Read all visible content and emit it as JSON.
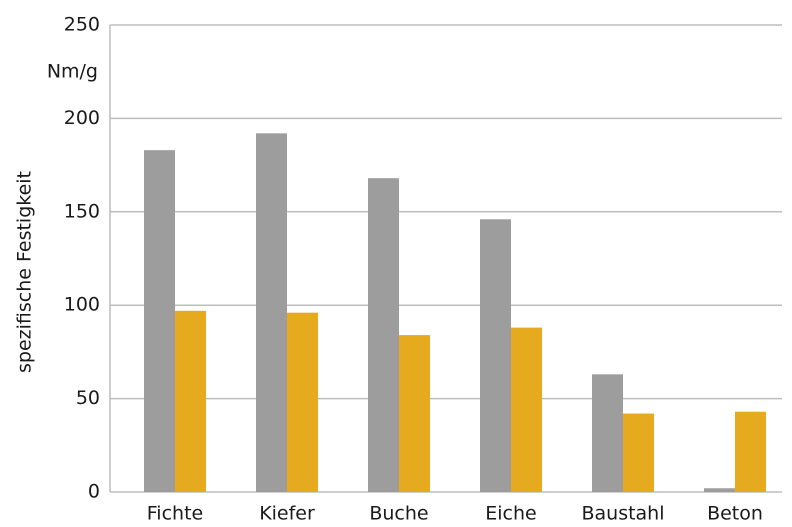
{
  "chart_data": {
    "type": "bar",
    "y_label": "spezifische Festigkeit",
    "unit": "Nm/g",
    "categories": [
      "Fichte",
      "Kiefer",
      "Buche",
      "Eiche",
      "Baustahl",
      "Beton"
    ],
    "series": [
      {
        "color": "#9d9d9d",
        "values": [
          183,
          192,
          168,
          146,
          63,
          2
        ]
      },
      {
        "color": "#e6aa1f",
        "values": [
          97,
          96,
          84,
          88,
          42,
          43
        ]
      }
    ],
    "ylim": [
      0,
      250
    ],
    "yticks": [
      0,
      50,
      100,
      150,
      200,
      250
    ],
    "grid": true
  }
}
